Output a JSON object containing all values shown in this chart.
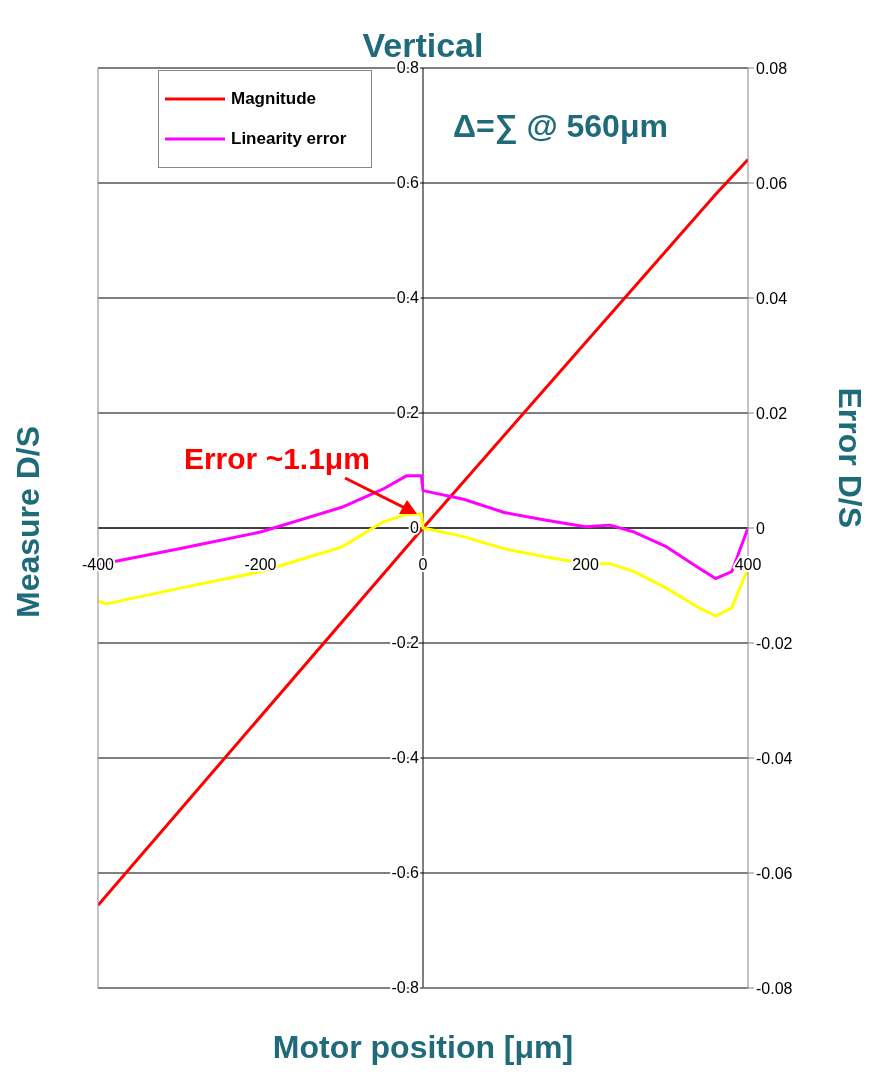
{
  "chart_data": {
    "type": "line",
    "title": "Vertical",
    "xlabel": "Motor position [μm]",
    "ylabel": "Measure D/S",
    "y2label": "Error D/S",
    "annotations": [
      "Δ=∑ @ 560μm",
      {
        "text": "Error ~1.1μm",
        "x": -5,
        "y": 0.024
      }
    ],
    "xlim": [
      -400,
      400
    ],
    "xticks": [
      -400,
      -200,
      0,
      200,
      400
    ],
    "ylim": [
      -0.8,
      0.8
    ],
    "yticks": [
      -0.8,
      -0.6,
      -0.4,
      -0.2,
      0,
      0.2,
      0.4,
      0.6,
      0.8
    ],
    "y2lim": [
      -0.08,
      0.08
    ],
    "y2ticks": [
      -0.08,
      -0.06,
      -0.04,
      -0.02,
      0,
      0.02,
      0.04,
      0.06,
      0.08
    ],
    "grid": "y",
    "legend": "top left",
    "marker": "none",
    "line_style": "solid",
    "series": [
      {
        "name": "Magnitude",
        "color": "#ff0000",
        "x": [
          -400,
          0,
          360,
          400
        ],
        "values": [
          -0.656,
          0,
          0.58,
          0.641
        ]
      },
      {
        "name": "Linearity error",
        "color": "#ff00ff",
        "axis": "y2",
        "x": [
          -400,
          -300,
          -200,
          -100,
          -50,
          -20,
          -2,
          0,
          50,
          100,
          150,
          200,
          230,
          260,
          300,
          340,
          360,
          380,
          400
        ],
        "values": [
          -0.0064,
          -0.0036,
          -0.0007,
          0.0036,
          0.0067,
          0.0091,
          0.0091,
          0.0065,
          0.005,
          0.0027,
          0.0014,
          0.0002,
          0.0005,
          -0.0007,
          -0.0033,
          -0.007,
          -0.0088,
          -0.0076,
          0
        ]
      },
      {
        "color": "#ffff00",
        "axis": "y2",
        "x": [
          -400,
          -390,
          -300,
          -200,
          -100,
          -50,
          -20,
          -2,
          0,
          50,
          100,
          150,
          200,
          230,
          260,
          300,
          340,
          360,
          380,
          400
        ],
        "values": [
          -0.0127,
          -0.0132,
          -0.0105,
          -0.0076,
          -0.0033,
          0.001,
          0.0024,
          0.0024,
          0,
          -0.0015,
          -0.0036,
          -0.005,
          -0.0062,
          -0.0062,
          -0.0076,
          -0.0105,
          -0.0139,
          -0.0153,
          -0.0139,
          -0.007
        ]
      }
    ]
  }
}
